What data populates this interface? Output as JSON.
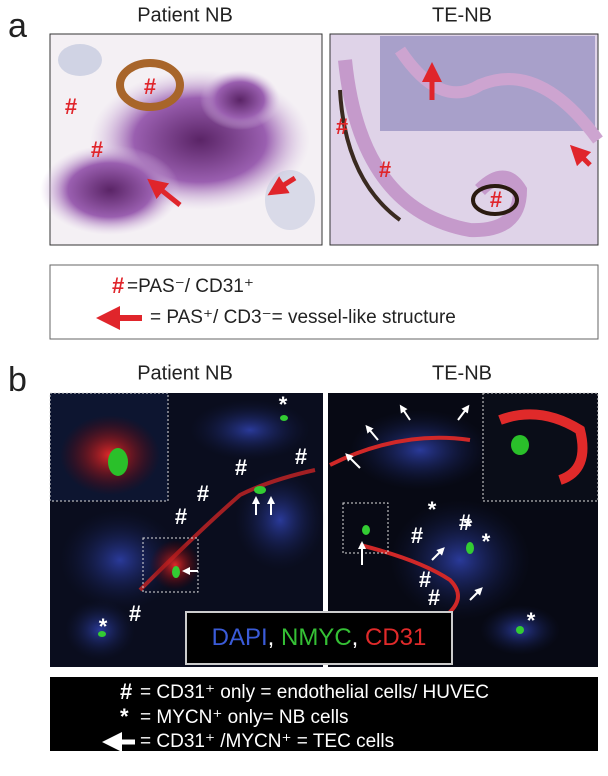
{
  "panel_a": {
    "label": "a",
    "left_title": "Patient NB",
    "right_title": "TE-NB",
    "left_marks": [
      "#",
      "#",
      "#"
    ],
    "right_marks": [
      "#",
      "#",
      "#"
    ],
    "legend": {
      "hash": "#",
      "hash_text": "=PAS⁻/ CD31⁺",
      "arrow_text": "= PAS⁺/ CD3⁻= vessel-like structure"
    }
  },
  "panel_b": {
    "label": "b",
    "left_title": "Patient NB",
    "right_title": "TE-NB",
    "left_marks": [
      "*",
      "#",
      "#",
      "#",
      "#",
      "#",
      "*"
    ],
    "right_marks": [
      "#",
      "#",
      "*",
      "*",
      "*",
      "#",
      "#",
      "*"
    ],
    "stain": {
      "dapi": "DAPI",
      "nmyc": "NMYC",
      "cd31": "CD31",
      "separator": ", "
    },
    "legend": {
      "hash": "#",
      "hash_text": "= CD31⁺ only = endothelial cells/ HUVEC",
      "star": "*",
      "star_text": "= MYCN⁺ only= NB cells",
      "arrow_text": "= CD31⁺ /MYCN⁺ = TEC cells"
    }
  }
}
